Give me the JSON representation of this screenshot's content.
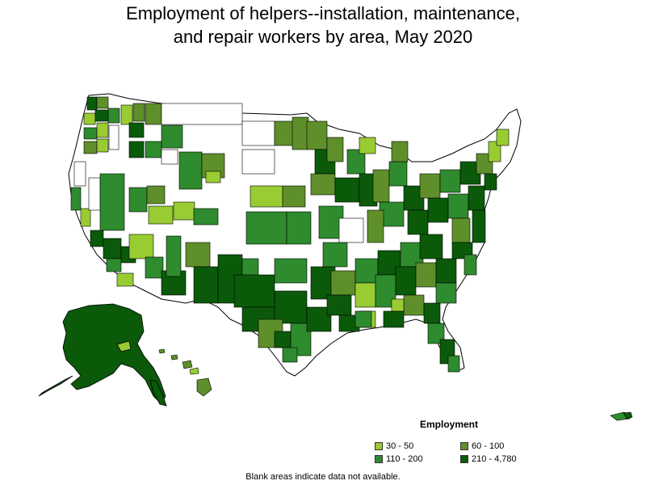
{
  "title": {
    "line1": "Employment of helpers--installation, maintenance,",
    "line2": "and repair workers by area, May 2020"
  },
  "legend": {
    "title": "Employment",
    "items": [
      {
        "label": "30 - 50",
        "color": "#99cc33"
      },
      {
        "label": "60 - 100",
        "color": "#5e8f2a"
      },
      {
        "label": "110 - 200",
        "color": "#2e8b2e"
      },
      {
        "label": "210 - 4,780",
        "color": "#0a5a0a"
      }
    ]
  },
  "footnote": "Blank areas indicate data not available.",
  "colors": {
    "no_data": "#ffffff",
    "border": "#000000"
  }
}
